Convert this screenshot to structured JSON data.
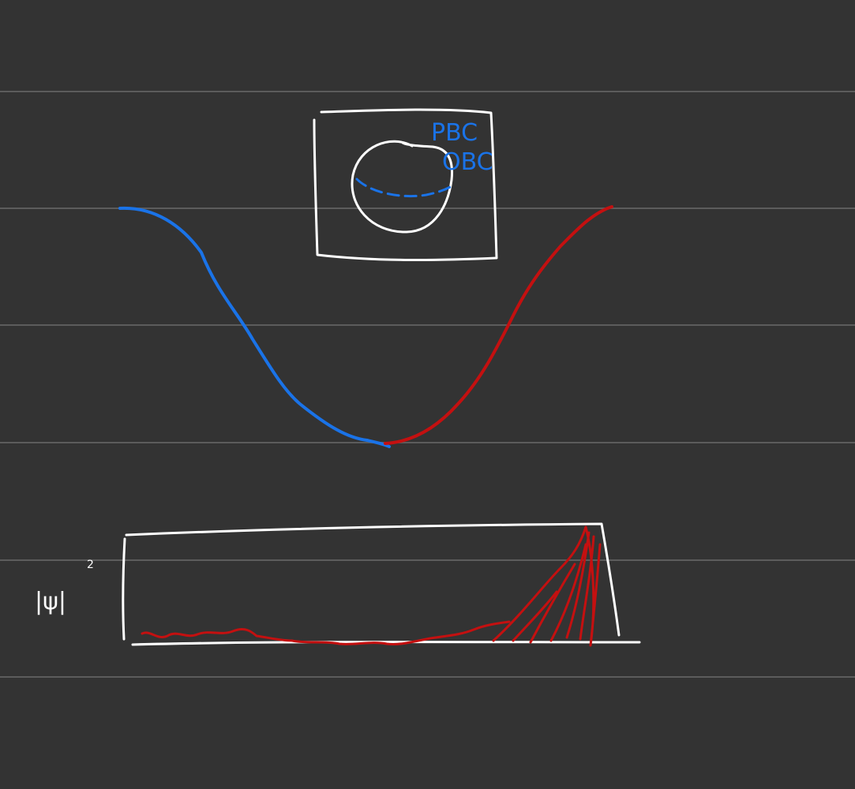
{
  "colors": {
    "background": "#333333",
    "rule_lines": "#5c5c5c",
    "ink_white": "#ffffff",
    "ink_blue": "#1a73e8",
    "ink_red": "#c41010"
  },
  "inset_box": {
    "label_top": "PBC",
    "label_bottom": "OBC"
  },
  "density_plot": {
    "ylabel": "|ψ|",
    "ylabel_exponent": "2"
  }
}
